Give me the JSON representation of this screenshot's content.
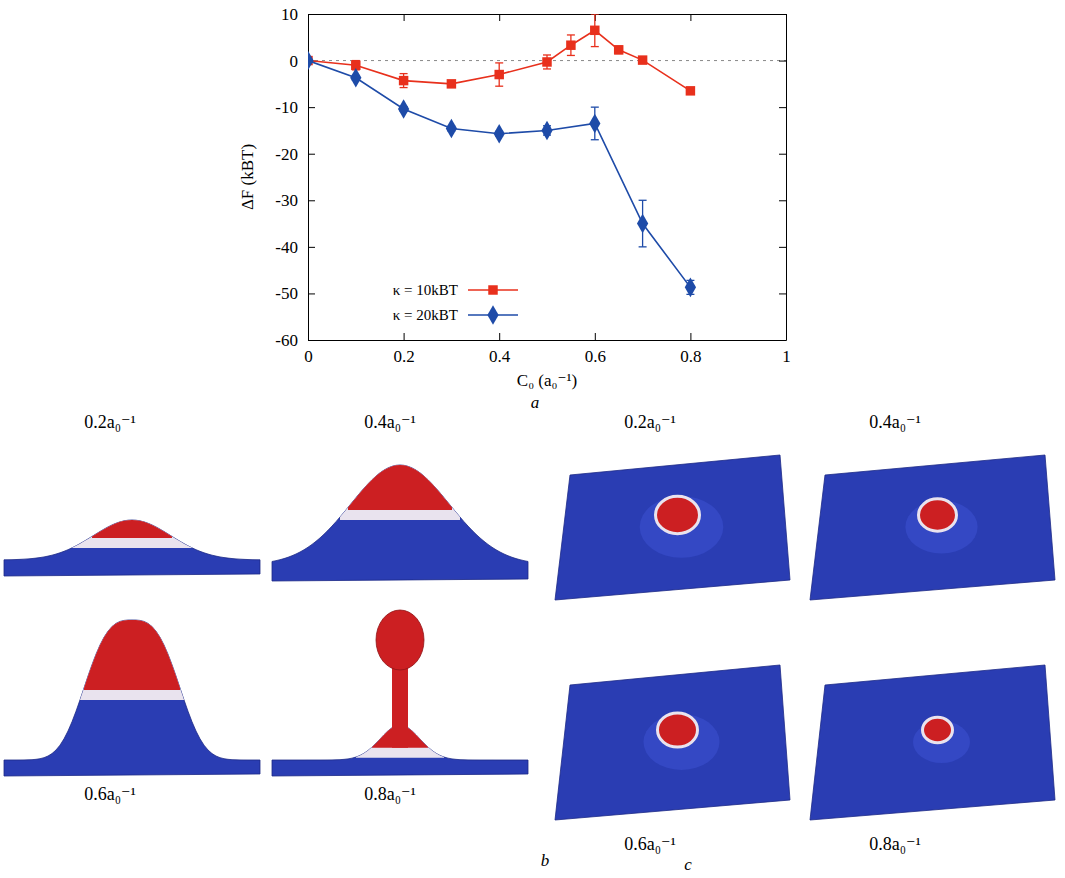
{
  "chart_data": {
    "type": "line",
    "x_label": "C₀ (a₀⁻¹)",
    "y_label": "ΔF (kBT)",
    "xlim": [
      0,
      1
    ],
    "ylim": [
      -60,
      10
    ],
    "xticks": [
      0,
      0.2,
      0.4,
      0.6,
      0.8,
      1
    ],
    "yticks": [
      -60,
      -50,
      -40,
      -30,
      -20,
      -10,
      0,
      10
    ],
    "legend": "lower left",
    "series": [
      {
        "name": "κ = 10kBT",
        "color": "#e8301c",
        "marker": "square",
        "line_style": "solid",
        "x": [
          0,
          0.1,
          0.2,
          0.3,
          0.4,
          0.5,
          0.55,
          0.6,
          0.65,
          0.7,
          0.8
        ],
        "values": [
          0,
          -1,
          -4.3,
          -5,
          -3,
          -0.3,
          3.3,
          6.5,
          2.3,
          0.1,
          -6.5
        ],
        "error": [
          0,
          1,
          1.5,
          0.5,
          2.5,
          1.5,
          2.2,
          3.5,
          0.8,
          0.5,
          0.5
        ]
      },
      {
        "name": "κ = 20kBT",
        "color": "#1e4ba8",
        "marker": "diamond",
        "line_style": "solid",
        "x": [
          0,
          0.1,
          0.2,
          0.3,
          0.4,
          0.5,
          0.6,
          0.7,
          0.8
        ],
        "values": [
          0,
          -3.7,
          -10.4,
          -14.6,
          -15.7,
          -15,
          -13.5,
          -35,
          -48.7
        ],
        "error": [
          0,
          0.5,
          0.5,
          0.5,
          0.5,
          1,
          3.5,
          5,
          1.5
        ]
      }
    ]
  },
  "figure": {
    "a": {
      "label": "a"
    },
    "b": {
      "label": "b",
      "captions": [
        "0.2a₀⁻¹",
        "0.4a₀⁻¹",
        "0.6a₀⁻¹",
        "0.8a₀⁻¹"
      ]
    },
    "c": {
      "label": "c",
      "captions": [
        "0.2a₀⁻¹",
        "0.4a₀⁻¹",
        "0.6a₀⁻¹",
        "0.8a₀⁻¹"
      ]
    }
  }
}
